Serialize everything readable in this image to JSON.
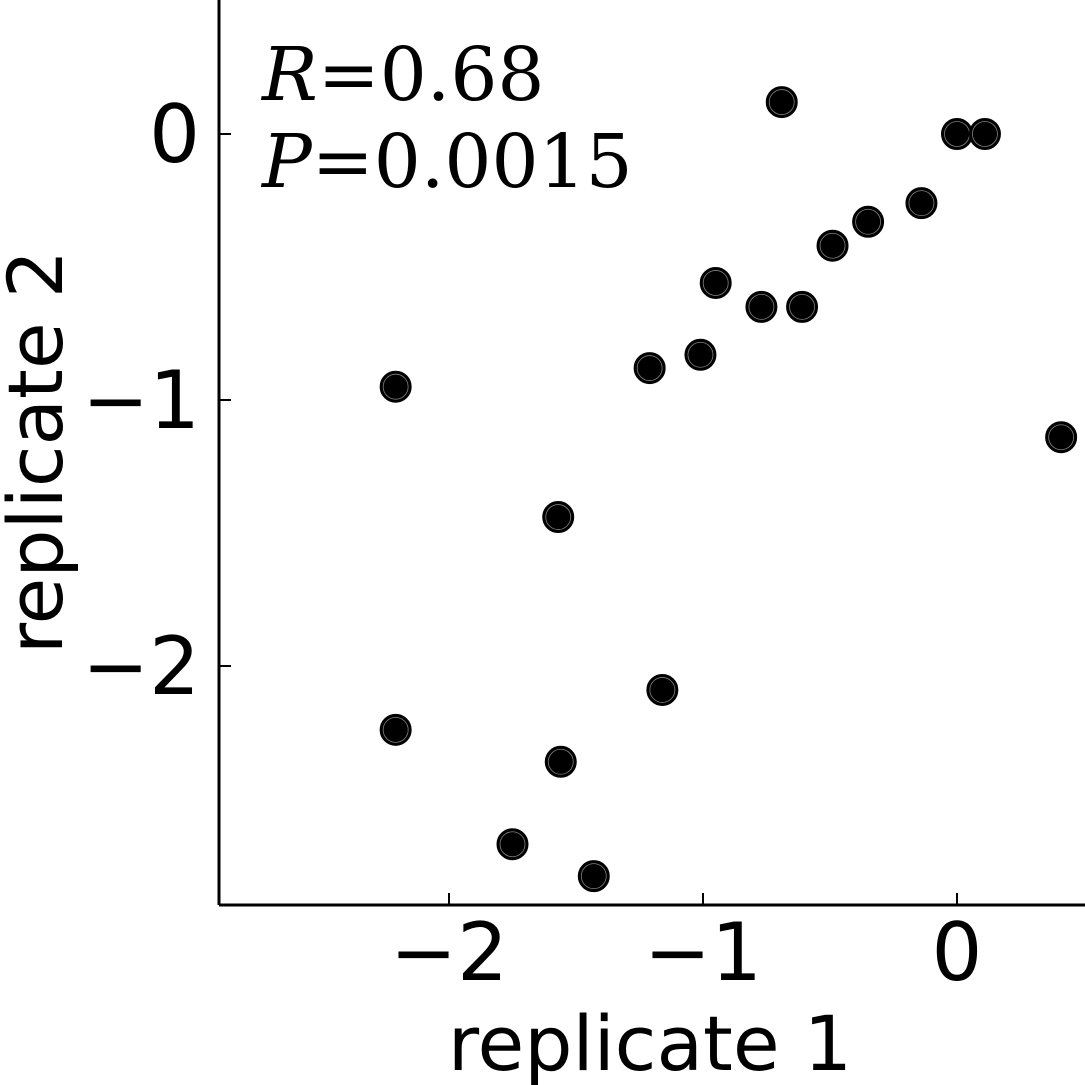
{
  "chart_data": {
    "type": "scatter",
    "title": "",
    "xlabel": "replicate 1",
    "ylabel": "replicate 2",
    "xlim": [
      -2.9,
      0.5
    ],
    "ylim": [
      -2.9,
      0.5
    ],
    "x_ticks": [
      -2,
      -1,
      0
    ],
    "y_ticks": [
      0,
      -1,
      -2
    ],
    "x_tick_labels": [
      "−2",
      "−1",
      "0"
    ],
    "y_tick_labels": [
      "0",
      "−1",
      "−2"
    ],
    "annotations": {
      "r_symbol": "R",
      "r_value": "=0.68",
      "p_symbol": "P",
      "p_value": "=0.0015"
    },
    "points": [
      {
        "x": -0.69,
        "y": 0.12
      },
      {
        "x": 0.0,
        "y": 0.0
      },
      {
        "x": 0.11,
        "y": 0.0
      },
      {
        "x": -0.14,
        "y": -0.26
      },
      {
        "x": -0.35,
        "y": -0.33
      },
      {
        "x": -0.49,
        "y": -0.42
      },
      {
        "x": -0.95,
        "y": -0.56
      },
      {
        "x": -0.77,
        "y": -0.65
      },
      {
        "x": -0.61,
        "y": -0.65
      },
      {
        "x": -1.01,
        "y": -0.83
      },
      {
        "x": -1.21,
        "y": -0.88
      },
      {
        "x": -2.21,
        "y": -0.95
      },
      {
        "x": 0.41,
        "y": -1.14
      },
      {
        "x": -1.57,
        "y": -1.44
      },
      {
        "x": -1.16,
        "y": -2.09
      },
      {
        "x": -2.21,
        "y": -2.24
      },
      {
        "x": -1.56,
        "y": -2.36
      },
      {
        "x": -1.75,
        "y": -2.67
      },
      {
        "x": -1.43,
        "y": -2.79
      }
    ],
    "marker_color": "#000000",
    "grid": false,
    "legend": "none"
  }
}
